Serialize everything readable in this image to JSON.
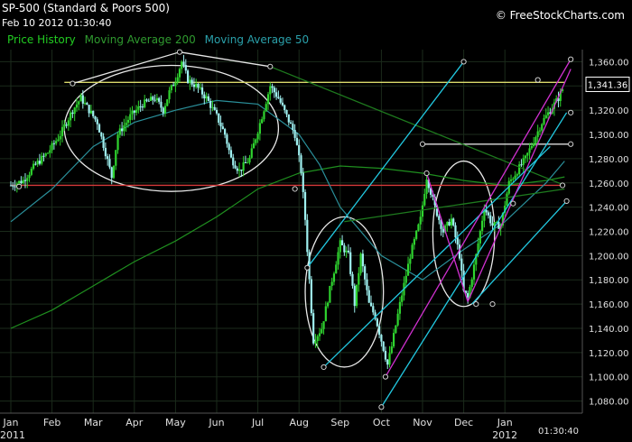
{
  "header": {
    "title": "SP-500 (Standard & Poors 500)",
    "timestamp": "Feb 10 2012 01:30:40",
    "brand": "© FreeStockCharts.com"
  },
  "legend": [
    {
      "label": "Price History",
      "color": "#22cc22"
    },
    {
      "label": "Moving Average 200",
      "color": "#1f8f1f"
    },
    {
      "label": "Moving Average 50",
      "color": "#2a8f9a"
    }
  ],
  "chart_data": {
    "type": "candlestick",
    "title": "SP-500 (Standard & Poors 500)",
    "ylim": [
      1070,
      1370
    ],
    "y_ticks": [
      1080,
      1100,
      1120,
      1140,
      1160,
      1180,
      1200,
      1220,
      1240,
      1260,
      1280,
      1300,
      1320,
      1340,
      1360
    ],
    "y_tick_labels": [
      "1,080.00",
      "1,100.00",
      "1,120.00",
      "1,140.00",
      "1,160.00",
      "1,180.00",
      "1,200.00",
      "1,220.00",
      "1,240.00",
      "1,260.00",
      "1,280.00",
      "1,300.00",
      "1,320.00",
      "1,340.00",
      "1,360.00"
    ],
    "x_labels": [
      "Jan",
      "Feb",
      "Mar",
      "Apr",
      "May",
      "Jun",
      "Jul",
      "Aug",
      "Sep",
      "Oct",
      "Nov",
      "Dec",
      "Jan"
    ],
    "year_labels": [
      "2011",
      "2012"
    ],
    "time_label": "01:30:40",
    "last_price": "1,341.36",
    "last_value": 1341.36,
    "price_path": [
      [
        0,
        1258
      ],
      [
        0.3,
        1262
      ],
      [
        0.6,
        1275
      ],
      [
        0.9,
        1285
      ],
      [
        1.2,
        1300
      ],
      [
        1.5,
        1320
      ],
      [
        1.7,
        1330
      ],
      [
        1.9,
        1320
      ],
      [
        2.1,
        1310
      ],
      [
        2.3,
        1285
      ],
      [
        2.45,
        1265
      ],
      [
        2.6,
        1300
      ],
      [
        2.9,
        1315
      ],
      [
        3.2,
        1325
      ],
      [
        3.5,
        1330
      ],
      [
        3.7,
        1320
      ],
      [
        3.85,
        1335
      ],
      [
        4.0,
        1345
      ],
      [
        4.15,
        1360
      ],
      [
        4.3,
        1345
      ],
      [
        4.5,
        1340
      ],
      [
        4.75,
        1330
      ],
      [
        5.0,
        1315
      ],
      [
        5.2,
        1300
      ],
      [
        5.35,
        1280
      ],
      [
        5.55,
        1270
      ],
      [
        5.8,
        1280
      ],
      [
        6.1,
        1315
      ],
      [
        6.3,
        1340
      ],
      [
        6.5,
        1330
      ],
      [
        6.7,
        1315
      ],
      [
        6.9,
        1300
      ],
      [
        7.05,
        1270
      ],
      [
        7.15,
        1230
      ],
      [
        7.25,
        1180
      ],
      [
        7.35,
        1130
      ],
      [
        7.55,
        1140
      ],
      [
        7.8,
        1180
      ],
      [
        8.0,
        1210
      ],
      [
        8.2,
        1200
      ],
      [
        8.35,
        1160
      ],
      [
        8.5,
        1200
      ],
      [
        8.7,
        1160
      ],
      [
        8.85,
        1150
      ],
      [
        9.0,
        1130
      ],
      [
        9.15,
        1110
      ],
      [
        9.25,
        1125
      ],
      [
        9.45,
        1160
      ],
      [
        9.7,
        1200
      ],
      [
        9.95,
        1230
      ],
      [
        10.1,
        1265
      ],
      [
        10.3,
        1240
      ],
      [
        10.5,
        1220
      ],
      [
        10.7,
        1230
      ],
      [
        10.9,
        1200
      ],
      [
        11.0,
        1170
      ],
      [
        11.1,
        1165
      ],
      [
        11.3,
        1200
      ],
      [
        11.5,
        1240
      ],
      [
        11.7,
        1225
      ],
      [
        11.9,
        1225
      ],
      [
        12.1,
        1260
      ],
      [
        12.3,
        1270
      ],
      [
        12.5,
        1280
      ],
      [
        12.7,
        1295
      ],
      [
        12.9,
        1310
      ],
      [
        13.1,
        1320
      ],
      [
        13.3,
        1330
      ],
      [
        13.45,
        1341.36
      ]
    ],
    "ma200_path": [
      [
        0,
        1140
      ],
      [
        1,
        1155
      ],
      [
        2,
        1175
      ],
      [
        3,
        1195
      ],
      [
        4,
        1212
      ],
      [
        5,
        1232
      ],
      [
        6,
        1255
      ],
      [
        7,
        1268
      ],
      [
        8,
        1274
      ],
      [
        9,
        1272
      ],
      [
        10,
        1268
      ],
      [
        11,
        1262
      ],
      [
        12,
        1258
      ],
      [
        13,
        1262
      ],
      [
        13.45,
        1265
      ]
    ],
    "ma50_path": [
      [
        0,
        1228
      ],
      [
        1,
        1255
      ],
      [
        2,
        1290
      ],
      [
        3,
        1310
      ],
      [
        4,
        1320
      ],
      [
        5,
        1328
      ],
      [
        6,
        1325
      ],
      [
        7,
        1300
      ],
      [
        7.5,
        1275
      ],
      [
        8,
        1240
      ],
      [
        9,
        1200
      ],
      [
        10,
        1180
      ],
      [
        11,
        1205
      ],
      [
        12,
        1228
      ],
      [
        13,
        1260
      ],
      [
        13.45,
        1278
      ]
    ],
    "horizontal_lines": [
      {
        "y": 1343,
        "color": "#d8d86a",
        "from": 1.3,
        "to": 13.45
      },
      {
        "y": 1258,
        "color": "#d43a3a",
        "from": 0,
        "to": 13.4
      },
      {
        "y": 1292,
        "color": "#dddddd",
        "from": 10.0,
        "to": 13.6
      }
    ],
    "trend_lines": [
      {
        "color": "#e6e6e6",
        "x1": 1.5,
        "y1": 1342,
        "x2": 4.1,
        "y2": 1368
      },
      {
        "color": "#e6e6e6",
        "x1": 4.1,
        "y1": 1368,
        "x2": 6.3,
        "y2": 1356
      },
      {
        "color": "#1e7a1e",
        "x1": 6.3,
        "y1": 1356,
        "x2": 13.45,
        "y2": 1258
      },
      {
        "color": "#1e7a1e",
        "x1": 8.1,
        "y1": 1228,
        "x2": 13.45,
        "y2": 1255
      },
      {
        "color": "#22c8e0",
        "x1": 7.2,
        "y1": 1190,
        "x2": 11.0,
        "y2": 1360
      },
      {
        "color": "#22c8e0",
        "x1": 7.6,
        "y1": 1108,
        "x2": 13.1,
        "y2": 1290
      },
      {
        "color": "#22c8e0",
        "x1": 9.0,
        "y1": 1075,
        "x2": 13.5,
        "y2": 1318
      },
      {
        "color": "#22c8e0",
        "x1": 11.2,
        "y1": 1160,
        "x2": 13.5,
        "y2": 1245
      },
      {
        "color": "#d030d0",
        "x1": 9.1,
        "y1": 1100,
        "x2": 13.6,
        "y2": 1362
      },
      {
        "color": "#d030d0",
        "x1": 10.1,
        "y1": 1268,
        "x2": 11.1,
        "y2": 1162
      },
      {
        "color": "#d030d0",
        "x1": 11.1,
        "y1": 1162,
        "x2": 13.6,
        "y2": 1354
      }
    ],
    "ellipses": [
      {
        "cx": 3.9,
        "cy": 1305,
        "rx": 2.6,
        "ry": 52
      },
      {
        "cx": 8.1,
        "cy": 1170,
        "rx": 0.95,
        "ry": 62
      },
      {
        "cx": 11.0,
        "cy": 1218,
        "rx": 0.75,
        "ry": 60
      }
    ],
    "markers": [
      [
        1.5,
        1342
      ],
      [
        4.1,
        1368
      ],
      [
        6.3,
        1356
      ],
      [
        6.9,
        1255
      ],
      [
        7.2,
        1190
      ],
      [
        7.6,
        1108
      ],
      [
        9.0,
        1075
      ],
      [
        9.1,
        1100
      ],
      [
        10.0,
        1292
      ],
      [
        10.1,
        1268
      ],
      [
        11.0,
        1360
      ],
      [
        11.3,
        1160
      ],
      [
        11.7,
        1160
      ],
      [
        12.2,
        1243
      ],
      [
        12.8,
        1345
      ],
      [
        13.4,
        1258
      ],
      [
        13.5,
        1245
      ],
      [
        13.6,
        1318
      ],
      [
        13.6,
        1362
      ],
      [
        13.6,
        1292
      ],
      [
        0.2,
        1257
      ]
    ],
    "grid": true,
    "legend_position": "top-left"
  }
}
